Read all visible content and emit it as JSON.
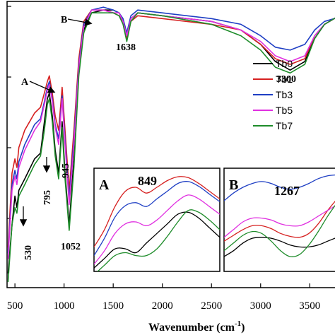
{
  "chart_data": {
    "type": "line",
    "title": "",
    "xlabel": "Wavenumber (cm",
    "xlabel_sup": "-1",
    "xlabel_close": ")",
    "ylabel": "",
    "xlim": [
      420,
      3800
    ],
    "ylim": [
      0,
      100
    ],
    "x_ticks": [
      500,
      1000,
      1500,
      2000,
      2500,
      3000,
      3500
    ],
    "grid": false,
    "legend_position": "upper-right",
    "series": [
      {
        "name": "Tb0",
        "color": "#000000",
        "x": [
          430,
          470,
          500,
          520,
          540,
          600,
          700,
          760,
          800,
          830,
          850,
          880,
          910,
          945,
          980,
          1010,
          1052,
          1100,
          1150,
          1200,
          1280,
          1400,
          1500,
          1560,
          1600,
          1638,
          1680,
          1750,
          2000,
          2500,
          2800,
          3000,
          3150,
          3300,
          3450,
          3550,
          3650,
          3750,
          3800
        ],
        "y": [
          5,
          22,
          32,
          28,
          34,
          38,
          45,
          47,
          58,
          66,
          68,
          60,
          48,
          40,
          58,
          40,
          22,
          45,
          75,
          90,
          96,
          97,
          97,
          96,
          93,
          88,
          94,
          96,
          95,
          93,
          90,
          85,
          79,
          76,
          79,
          87,
          92,
          94,
          95
        ]
      },
      {
        "name": "Tb1",
        "color": "#d62020",
        "x": [
          430,
          470,
          500,
          520,
          540,
          600,
          700,
          760,
          800,
          830,
          850,
          880,
          910,
          945,
          980,
          1010,
          1052,
          1100,
          1150,
          1200,
          1280,
          1400,
          1500,
          1560,
          1600,
          1638,
          1680,
          1750,
          2000,
          2500,
          2800,
          3000,
          3150,
          3300,
          3450,
          3550,
          3650,
          3750,
          3800
        ],
        "y": [
          14,
          40,
          45,
          42,
          49,
          55,
          61,
          63,
          68,
          72,
          74,
          68,
          60,
          55,
          70,
          55,
          34,
          55,
          80,
          93,
          97,
          97,
          96,
          95,
          93,
          87,
          93,
          95,
          94,
          92,
          90,
          85,
          80,
          78,
          80,
          88,
          92,
          94,
          95
        ]
      },
      {
        "name": "Tb3",
        "color": "#1f3fc4",
        "x": [
          430,
          470,
          500,
          520,
          540,
          600,
          700,
          760,
          800,
          830,
          850,
          880,
          910,
          945,
          980,
          1010,
          1052,
          1100,
          1150,
          1200,
          1280,
          1400,
          1500,
          1560,
          1600,
          1638,
          1680,
          1750,
          2000,
          2500,
          2800,
          3000,
          3150,
          3300,
          3450,
          3550,
          3650,
          3750,
          3800
        ],
        "y": [
          12,
          36,
          41,
          38,
          44,
          50,
          57,
          59,
          65,
          70,
          72,
          66,
          57,
          52,
          67,
          52,
          31,
          52,
          78,
          92,
          97,
          98,
          97,
          96,
          94,
          89,
          95,
          97,
          96,
          94,
          92,
          88,
          84,
          83,
          85,
          90,
          93,
          94,
          95
        ]
      },
      {
        "name": "Tb5",
        "color": "#e030e0",
        "x": [
          430,
          470,
          500,
          520,
          540,
          600,
          700,
          760,
          800,
          830,
          850,
          880,
          910,
          945,
          980,
          1010,
          1052,
          1100,
          1150,
          1200,
          1280,
          1400,
          1500,
          1560,
          1600,
          1638,
          1680,
          1750,
          2000,
          2500,
          2800,
          3000,
          3150,
          3300,
          3450,
          3550,
          3650,
          3750,
          3800
        ],
        "y": [
          10,
          34,
          39,
          36,
          42,
          48,
          55,
          58,
          64,
          69,
          71,
          65,
          56,
          50,
          66,
          50,
          29,
          50,
          77,
          91,
          97,
          97,
          96,
          96,
          93,
          88,
          94,
          96,
          95,
          93,
          90,
          86,
          81,
          79,
          81,
          88,
          92,
          94,
          95
        ]
      },
      {
        "name": "Tb7",
        "color": "#1e8c2a",
        "x": [
          430,
          470,
          500,
          520,
          540,
          600,
          700,
          760,
          800,
          830,
          850,
          880,
          910,
          945,
          980,
          1010,
          1052,
          1100,
          1150,
          1200,
          1280,
          1400,
          1500,
          1560,
          1600,
          1638,
          1680,
          1750,
          2000,
          2500,
          2800,
          3000,
          3150,
          3300,
          3450,
          3550,
          3650,
          3750,
          3800
        ],
        "y": [
          2,
          22,
          28,
          26,
          32,
          36,
          43,
          46,
          55,
          64,
          66,
          58,
          46,
          38,
          56,
          38,
          20,
          42,
          74,
          89,
          96,
          96,
          96,
          95,
          92,
          86,
          93,
          96,
          95,
          92,
          88,
          83,
          77,
          75,
          78,
          87,
          92,
          94,
          95
        ]
      }
    ],
    "annotations": [
      {
        "text": "A"
      },
      {
        "text": "B"
      },
      {
        "text": "530"
      },
      {
        "text": "795"
      },
      {
        "text": "945"
      },
      {
        "text": "1052"
      },
      {
        "text": "1638"
      },
      {
        "text": "3300"
      }
    ],
    "insets": [
      {
        "label": "A",
        "annotation": "849",
        "series": [
          {
            "name": "Tb0",
            "color": "#000000",
            "y": [
              0.02,
              0.12,
              0.22,
              0.22,
              0.18,
              0.28,
              0.38,
              0.48,
              0.58,
              0.6,
              0.54,
              0.44,
              0.34
            ]
          },
          {
            "name": "Tb1",
            "color": "#d62020",
            "y": [
              0.24,
              0.42,
              0.66,
              0.82,
              0.86,
              0.8,
              0.86,
              0.93,
              0.97,
              0.96,
              0.9,
              0.82,
              0.74
            ]
          },
          {
            "name": "Tb3",
            "color": "#1f3fc4",
            "y": [
              0.15,
              0.33,
              0.55,
              0.67,
              0.7,
              0.66,
              0.74,
              0.82,
              0.9,
              0.92,
              0.87,
              0.79,
              0.71
            ]
          },
          {
            "name": "Tb5",
            "color": "#e030e0",
            "y": [
              0.06,
              0.2,
              0.38,
              0.48,
              0.5,
              0.46,
              0.52,
              0.62,
              0.72,
              0.78,
              0.74,
              0.66,
              0.58
            ]
          },
          {
            "name": "Tb7",
            "color": "#1e8c2a",
            "y": [
              -0.05,
              0.05,
              0.15,
              0.18,
              0.15,
              0.15,
              0.22,
              0.35,
              0.5,
              0.62,
              0.6,
              0.52,
              0.42
            ]
          }
        ]
      },
      {
        "label": "B",
        "annotation": "1267",
        "series": [
          {
            "name": "Tb0",
            "color": "#000000",
            "y": [
              0.14,
              0.2,
              0.28,
              0.33,
              0.34,
              0.33,
              0.3,
              0.26,
              0.24,
              0.24,
              0.26,
              0.3,
              0.34
            ]
          },
          {
            "name": "Tb1",
            "color": "#d62020",
            "y": [
              0.3,
              0.36,
              0.42,
              0.46,
              0.46,
              0.43,
              0.38,
              0.35,
              0.34,
              0.38,
              0.48,
              0.62,
              0.74
            ]
          },
          {
            "name": "Tb3",
            "color": "#1f3fc4",
            "y": [
              0.72,
              0.8,
              0.86,
              0.9,
              0.92,
              0.9,
              0.86,
              0.84,
              0.86,
              0.9,
              0.95,
              0.98,
              0.99
            ]
          },
          {
            "name": "Tb5",
            "color": "#e030e0",
            "y": [
              0.34,
              0.42,
              0.5,
              0.54,
              0.54,
              0.52,
              0.48,
              0.46,
              0.46,
              0.5,
              0.56,
              0.62,
              0.68
            ]
          },
          {
            "name": "Tb7",
            "color": "#1e8c2a",
            "y": [
              0.2,
              0.28,
              0.36,
              0.4,
              0.38,
              0.3,
              0.2,
              0.14,
              0.16,
              0.26,
              0.4,
              0.56,
              0.7
            ]
          }
        ]
      }
    ]
  }
}
